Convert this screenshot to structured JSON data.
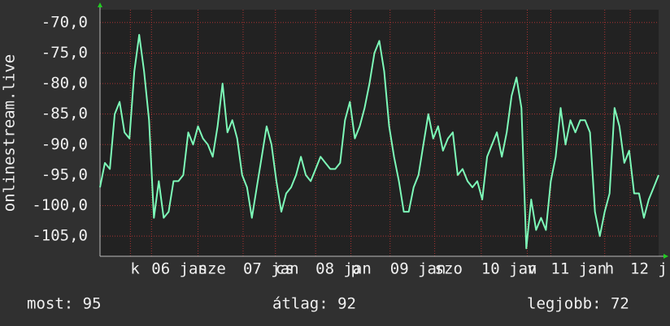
{
  "chart_data": {
    "type": "line",
    "y_label": "onlinestream.live",
    "x": [
      0,
      1,
      2,
      3,
      4,
      5,
      6,
      7,
      8,
      9,
      10,
      11,
      12,
      13,
      14,
      15,
      16,
      17,
      18,
      19,
      20,
      21,
      22,
      23,
      24,
      25,
      26,
      27,
      28,
      29,
      30,
      31,
      32,
      33,
      34,
      35,
      36,
      37,
      38,
      39,
      40,
      41,
      42,
      43,
      44,
      45,
      46,
      47,
      48,
      49,
      50,
      51,
      52,
      53,
      54,
      55,
      56,
      57,
      58,
      59,
      60,
      61,
      62,
      63,
      64,
      65,
      66,
      67,
      68,
      69,
      70,
      71,
      72,
      73,
      74,
      75,
      76,
      77,
      78,
      79,
      80,
      81,
      82,
      83,
      84,
      85,
      86,
      87,
      88,
      89,
      90,
      91,
      92,
      93,
      94,
      95,
      96,
      97,
      98,
      99,
      100,
      101,
      102,
      103,
      104,
      105,
      106,
      107,
      108,
      109,
      110,
      111,
      112,
      113,
      114
    ],
    "series": [
      {
        "color": "#7dfab8",
        "values": [
          -97,
          -93,
          -94,
          -85,
          -83,
          -88,
          -89,
          -78,
          -72,
          -78,
          -86,
          -102,
          -96,
          -102,
          -101,
          -96,
          -96,
          -95,
          -88,
          -90,
          -87,
          -89,
          -90,
          -92,
          -87,
          -80,
          -88,
          -86,
          -89,
          -95,
          -97,
          -102,
          -97,
          -92,
          -87,
          -90,
          -96,
          -101,
          -98,
          -97,
          -95,
          -92,
          -95,
          -96,
          -94,
          -92,
          -93,
          -94,
          -94,
          -93,
          -86,
          -83,
          -89,
          -87,
          -84,
          -80,
          -75,
          -73,
          -78,
          -87,
          -92,
          -96,
          -101,
          -101,
          -97,
          -95,
          -90,
          -85,
          -89,
          -87,
          -91,
          -89,
          -88,
          -95,
          -94,
          -96,
          -97,
          -96,
          -99,
          -92,
          -90,
          -88,
          -92,
          -88,
          -82,
          -79,
          -84,
          -107,
          -99,
          -104,
          -102,
          -104,
          -96,
          -92,
          -84,
          -90,
          -86,
          -88,
          -86,
          -86,
          -88,
          -101,
          -105,
          -101,
          -98,
          -84,
          -87,
          -93,
          -91,
          -98,
          -98,
          -102,
          -99,
          -97,
          -95
        ]
      }
    ],
    "xlim": [
      0,
      114
    ],
    "ylim": [
      -108.3,
      -67.9
    ],
    "yticks": [
      {
        "value": -70,
        "label": "-70,0"
      },
      {
        "value": -75,
        "label": "-75,0"
      },
      {
        "value": -80,
        "label": "-80,0"
      },
      {
        "value": -85,
        "label": "-85,0"
      },
      {
        "value": -90,
        "label": "-90,0"
      },
      {
        "value": -95,
        "label": "-95,0"
      },
      {
        "value": -100,
        "label": "-100,0"
      },
      {
        "value": -105,
        "label": "-105,0"
      }
    ],
    "xticks": [
      {
        "value": 6.2,
        "label": "k"
      },
      {
        "value": 10.5,
        "label": "06 jan"
      },
      {
        "value": 20,
        "label": "sze"
      },
      {
        "value": 29.2,
        "label": "07 jan"
      },
      {
        "value": 35.8,
        "label": "cs"
      },
      {
        "value": 44,
        "label": "08 jan"
      },
      {
        "value": 51.2,
        "label": "p"
      },
      {
        "value": 59.2,
        "label": "09 jan"
      },
      {
        "value": 68.3,
        "label": "szo"
      },
      {
        "value": 77.8,
        "label": "10 jan"
      },
      {
        "value": 87.2,
        "label": "v"
      },
      {
        "value": 92,
        "label": "11 jan"
      },
      {
        "value": 103,
        "label": "h"
      },
      {
        "value": 108.2,
        "label": "12 j"
      }
    ],
    "grid": true,
    "footer": [
      "most: 95",
      "átlag: 92",
      "legjobb: 72"
    ]
  }
}
